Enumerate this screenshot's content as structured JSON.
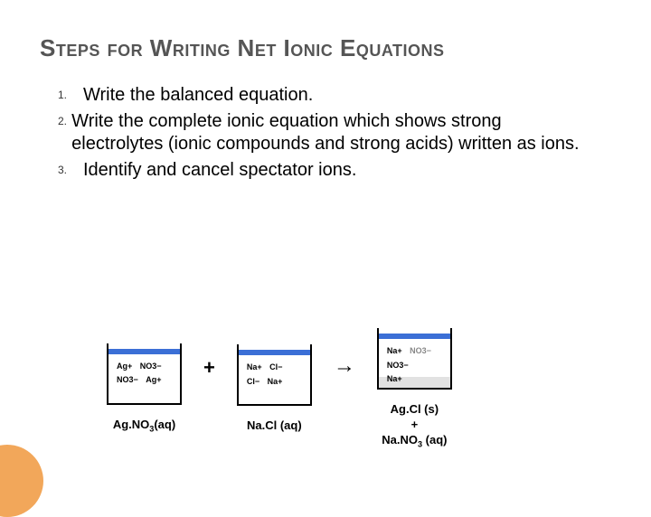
{
  "colors": {
    "title": "#555555",
    "text": "#000000",
    "background": "#ffffff",
    "water": "#3b6fd6",
    "precipitate": "#e2e2e2",
    "corner_accent": "#f2a75a",
    "ion_grey": "#888888"
  },
  "typography": {
    "title_fontsize": 26,
    "body_fontsize": 20,
    "caption_fontsize": 13,
    "number_fontsize": 12
  },
  "title": "Steps for Writing Net Ionic Equations",
  "steps": [
    {
      "num": "1.",
      "text": "Write the balanced equation."
    },
    {
      "num": "2.",
      "text": "Write the complete ionic equation which shows strong electrolytes (ionic compounds and strong acids) written as ions."
    },
    {
      "num": "3.",
      "text": "Identify and cancel spectator ions."
    }
  ],
  "reaction": {
    "type": "infographic",
    "operator_plus": "+",
    "operator_arrow": "→",
    "beakers": [
      {
        "id": "agno3",
        "ions": [
          "Ag+",
          "NO3−",
          "NO3−",
          "Ag+"
        ],
        "has_precipitate": false,
        "caption_html": "Ag.NO<sub>3</sub>(aq)"
      },
      {
        "id": "nacl",
        "ions": [
          "Na+",
          "Cl−",
          "Cl−",
          "Na+"
        ],
        "has_precipitate": false,
        "caption_html": "Na.Cl (aq)"
      },
      {
        "id": "products",
        "ions_main": [
          "Na+",
          "NO3−",
          "Na+"
        ],
        "ions_grey": [
          "NO3−"
        ],
        "has_precipitate": true,
        "caption_html": "Ag.Cl (s)<br>+<br>Na.NO<sub>3</sub>  (aq)"
      }
    ]
  }
}
